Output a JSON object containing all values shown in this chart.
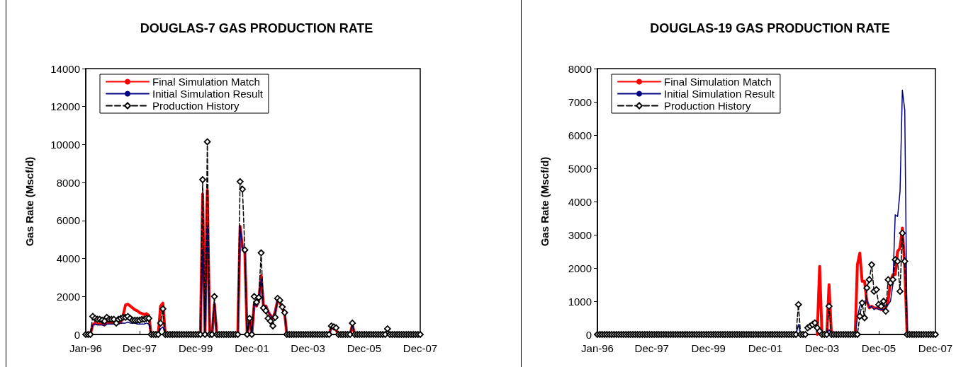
{
  "chart_data": [
    {
      "type": "line",
      "title": "DOUGLAS-7 GAS PRODUCTION RATE",
      "ylabel": "Gas Rate (Mscf/d)",
      "legend": "top left",
      "grid": false,
      "xlim": [
        "1996-01",
        "2007-12"
      ],
      "xticks": [
        {
          "value": "1996-01",
          "label": "Jan-96"
        },
        {
          "value": "1997-12",
          "label": "Dec-97"
        },
        {
          "value": "1999-12",
          "label": "Dec-99"
        },
        {
          "value": "2001-12",
          "label": "Dec-01"
        },
        {
          "value": "2003-12",
          "label": "Dec-03"
        },
        {
          "value": "2005-12",
          "label": "Dec-05"
        },
        {
          "value": "2007-12",
          "label": "Dec-07"
        }
      ],
      "ylim": [
        0,
        14000
      ],
      "yticks": [
        0,
        2000,
        4000,
        6000,
        8000,
        10000,
        12000,
        14000
      ],
      "x": [
        "1996-01",
        "1996-02",
        "1996-03",
        "1996-04",
        "1996-05",
        "1996-06",
        "1996-07",
        "1996-08",
        "1996-09",
        "1996-10",
        "1996-11",
        "1996-12",
        "1997-01",
        "1997-02",
        "1997-03",
        "1997-04",
        "1997-05",
        "1997-06",
        "1997-07",
        "1997-08",
        "1997-09",
        "1997-10",
        "1997-11",
        "1997-12",
        "1998-01",
        "1998-02",
        "1998-03",
        "1998-04",
        "1998-05",
        "1998-06",
        "1998-07",
        "1998-08",
        "1998-09",
        "1998-10",
        "1998-11",
        "1998-12",
        "1999-01",
        "1999-02",
        "1999-03",
        "1999-04",
        "1999-05",
        "1999-06",
        "1999-07",
        "1999-08",
        "1999-09",
        "1999-10",
        "1999-11",
        "1999-12",
        "2000-01",
        "2000-02",
        "2000-03",
        "2000-04",
        "2000-05",
        "2000-06",
        "2000-07",
        "2000-08",
        "2000-09",
        "2000-10",
        "2000-11",
        "2000-12",
        "2001-01",
        "2001-02",
        "2001-03",
        "2001-04",
        "2001-05",
        "2001-06",
        "2001-07",
        "2001-08",
        "2001-09",
        "2001-10",
        "2001-11",
        "2001-12",
        "2002-01",
        "2002-02",
        "2002-03",
        "2002-04",
        "2002-05",
        "2002-06",
        "2002-07",
        "2002-08",
        "2002-09",
        "2002-10",
        "2002-11",
        "2002-12",
        "2003-01",
        "2003-02",
        "2003-03",
        "2003-04",
        "2003-05",
        "2003-06",
        "2003-07",
        "2003-08",
        "2003-09",
        "2003-10",
        "2003-11",
        "2003-12",
        "2004-01",
        "2004-02",
        "2004-03",
        "2004-04",
        "2004-05",
        "2004-06",
        "2004-07",
        "2004-08",
        "2004-09",
        "2004-10",
        "2004-11",
        "2004-12",
        "2005-01",
        "2005-02",
        "2005-03",
        "2005-04",
        "2005-05",
        "2005-06",
        "2005-07",
        "2005-08",
        "2005-09",
        "2005-10",
        "2005-11",
        "2005-12",
        "2006-01",
        "2006-02",
        "2006-03",
        "2006-04",
        "2006-05",
        "2006-06",
        "2006-07",
        "2006-08",
        "2006-09",
        "2006-10",
        "2006-11",
        "2006-12",
        "2007-01",
        "2007-02",
        "2007-03",
        "2007-04",
        "2007-05",
        "2007-06",
        "2007-07",
        "2007-08",
        "2007-09",
        "2007-10",
        "2007-11",
        "2007-12"
      ],
      "series": [
        {
          "name": "Final Simulation Match",
          "color": "#ff0000",
          "marker": "none",
          "line_style": "solid",
          "values": [
            null,
            null,
            0,
            500,
            600,
            550,
            550,
            550,
            500,
            600,
            600,
            600,
            600,
            550,
            600,
            650,
            1000,
            1550,
            1600,
            1500,
            1400,
            1300,
            1250,
            1150,
            1100,
            1050,
            1100,
            1000,
            0,
            null,
            null,
            0,
            1500,
            1650,
            0,
            null,
            null,
            null,
            null,
            null,
            null,
            null,
            null,
            null,
            null,
            null,
            null,
            null,
            null,
            0,
            7400,
            0,
            7600,
            0,
            0,
            1600,
            0,
            null,
            null,
            null,
            null,
            null,
            null,
            null,
            null,
            0,
            5700,
            4600,
            4300,
            0,
            800,
            0,
            1600,
            1500,
            1800,
            3100,
            1500,
            1500,
            1200,
            1000,
            850,
            1200,
            1800,
            1700,
            1400,
            1100,
            0,
            null,
            null,
            null,
            null,
            null,
            null,
            null,
            null,
            null,
            null,
            null,
            null,
            null,
            null,
            null,
            null,
            null,
            0,
            400,
            300,
            250,
            0,
            null,
            null,
            null,
            null,
            0,
            500,
            0,
            null,
            null,
            null,
            null,
            null,
            null,
            null,
            null,
            null,
            null,
            null,
            null,
            null,
            null,
            null,
            null,
            null,
            null,
            null,
            null,
            null,
            null,
            null,
            null,
            null,
            null,
            null,
            null
          ]
        },
        {
          "name": "Initial Simulation Result",
          "color": "#000080",
          "marker": "none",
          "line_style": "solid",
          "values": [
            null,
            null,
            0,
            500,
            550,
            500,
            500,
            500,
            450,
            550,
            550,
            550,
            550,
            500,
            550,
            600,
            600,
            600,
            650,
            600,
            600,
            600,
            550,
            550,
            550,
            550,
            600,
            550,
            0,
            null,
            null,
            0,
            300,
            400,
            0,
            null,
            null,
            null,
            null,
            null,
            null,
            null,
            null,
            null,
            null,
            null,
            null,
            null,
            null,
            0,
            4500,
            0,
            5700,
            0,
            0,
            1700,
            0,
            null,
            null,
            null,
            null,
            null,
            null,
            null,
            null,
            0,
            5700,
            4600,
            4300,
            0,
            800,
            0,
            1600,
            1500,
            1800,
            2900,
            1500,
            1500,
            1200,
            1000,
            850,
            1200,
            1800,
            1700,
            1400,
            1100,
            0,
            null,
            null,
            null,
            null,
            null,
            null,
            null,
            null,
            null,
            null,
            null,
            null,
            null,
            null,
            null,
            null,
            null,
            0,
            400,
            300,
            250,
            0,
            null,
            null,
            null,
            null,
            0,
            500,
            0,
            null,
            null,
            null,
            null,
            null,
            null,
            null,
            null,
            null,
            null,
            null,
            null,
            null,
            null,
            null,
            null,
            null,
            null,
            null,
            null,
            null,
            null,
            null,
            null,
            null,
            null,
            null,
            null
          ]
        },
        {
          "name": "Production History",
          "color": "#000000",
          "marker": "diamond",
          "line_style": "dashed",
          "values": [
            0,
            0,
            0,
            950,
            850,
            800,
            800,
            750,
            700,
            900,
            800,
            800,
            800,
            600,
            800,
            850,
            900,
            900,
            950,
            850,
            750,
            750,
            750,
            750,
            800,
            800,
            850,
            850,
            0,
            0,
            0,
            0,
            600,
            1350,
            0,
            0,
            0,
            0,
            0,
            0,
            0,
            0,
            0,
            0,
            0,
            0,
            0,
            0,
            0,
            0,
            8150,
            0,
            10150,
            0,
            0,
            2000,
            0,
            0,
            0,
            0,
            0,
            0,
            0,
            0,
            0,
            0,
            8050,
            7650,
            4450,
            0,
            850,
            0,
            2000,
            1700,
            1950,
            4300,
            1400,
            1250,
            850,
            700,
            450,
            900,
            1900,
            1800,
            1450,
            1150,
            0,
            0,
            0,
            0,
            0,
            0,
            0,
            0,
            0,
            0,
            0,
            0,
            0,
            0,
            0,
            0,
            0,
            0,
            0,
            450,
            400,
            350,
            0,
            0,
            0,
            0,
            0,
            0,
            600,
            0,
            0,
            0,
            0,
            0,
            0,
            0,
            0,
            0,
            0,
            0,
            0,
            0,
            0,
            300,
            0,
            0,
            0,
            0,
            0,
            0,
            0,
            0,
            0,
            0,
            0,
            0,
            0,
            0
          ]
        }
      ]
    },
    {
      "type": "line",
      "title": "DOUGLAS-19 GAS PRODUCTION RATE",
      "ylabel": "Gas Rate (Mscf/d)",
      "legend": "top left",
      "grid": false,
      "xlim": [
        "1996-01",
        "2007-12"
      ],
      "xticks": [
        {
          "value": "1996-01",
          "label": "Jan-96"
        },
        {
          "value": "1997-12",
          "label": "Dec-97"
        },
        {
          "value": "1999-12",
          "label": "Dec-99"
        },
        {
          "value": "2001-12",
          "label": "Dec-01"
        },
        {
          "value": "2003-12",
          "label": "Dec-03"
        },
        {
          "value": "2005-12",
          "label": "Dec-05"
        },
        {
          "value": "2007-12",
          "label": "Dec-07"
        }
      ],
      "ylim": [
        0,
        8000
      ],
      "yticks": [
        0,
        1000,
        2000,
        3000,
        4000,
        5000,
        6000,
        7000,
        8000
      ],
      "x": [
        "1996-01",
        "1996-02",
        "1996-03",
        "1996-04",
        "1996-05",
        "1996-06",
        "1996-07",
        "1996-08",
        "1996-09",
        "1996-10",
        "1996-11",
        "1996-12",
        "1997-01",
        "1997-02",
        "1997-03",
        "1997-04",
        "1997-05",
        "1997-06",
        "1997-07",
        "1997-08",
        "1997-09",
        "1997-10",
        "1997-11",
        "1997-12",
        "1998-01",
        "1998-02",
        "1998-03",
        "1998-04",
        "1998-05",
        "1998-06",
        "1998-07",
        "1998-08",
        "1998-09",
        "1998-10",
        "1998-11",
        "1998-12",
        "1999-01",
        "1999-02",
        "1999-03",
        "1999-04",
        "1999-05",
        "1999-06",
        "1999-07",
        "1999-08",
        "1999-09",
        "1999-10",
        "1999-11",
        "1999-12",
        "2000-01",
        "2000-02",
        "2000-03",
        "2000-04",
        "2000-05",
        "2000-06",
        "2000-07",
        "2000-08",
        "2000-09",
        "2000-10",
        "2000-11",
        "2000-12",
        "2001-01",
        "2001-02",
        "2001-03",
        "2001-04",
        "2001-05",
        "2001-06",
        "2001-07",
        "2001-08",
        "2001-09",
        "2001-10",
        "2001-11",
        "2001-12",
        "2002-01",
        "2002-02",
        "2002-03",
        "2002-04",
        "2002-05",
        "2002-06",
        "2002-07",
        "2002-08",
        "2002-09",
        "2002-10",
        "2002-11",
        "2002-12",
        "2003-01",
        "2003-02",
        "2003-03",
        "2003-04",
        "2003-05",
        "2003-06",
        "2003-07",
        "2003-08",
        "2003-09",
        "2003-10",
        "2003-11",
        "2003-12",
        "2004-01",
        "2004-02",
        "2004-03",
        "2004-04",
        "2004-05",
        "2004-06",
        "2004-07",
        "2004-08",
        "2004-09",
        "2004-10",
        "2004-11",
        "2004-12",
        "2005-01",
        "2005-02",
        "2005-03",
        "2005-04",
        "2005-05",
        "2005-06",
        "2005-07",
        "2005-08",
        "2005-09",
        "2005-10",
        "2005-11",
        "2005-12",
        "2006-01",
        "2006-02",
        "2006-03",
        "2006-04",
        "2006-05",
        "2006-06",
        "2006-07",
        "2006-08",
        "2006-09",
        "2006-10",
        "2006-11",
        "2006-12",
        "2007-01",
        "2007-02",
        "2007-03",
        "2007-04",
        "2007-05",
        "2007-06",
        "2007-07",
        "2007-08",
        "2007-09",
        "2007-10",
        "2007-11",
        "2007-12"
      ],
      "series": [
        {
          "name": "Final Simulation Match",
          "color": "#ff0000",
          "marker": "none",
          "line_style": "solid",
          "values": [
            null,
            null,
            null,
            null,
            null,
            null,
            null,
            null,
            null,
            null,
            null,
            null,
            null,
            null,
            null,
            null,
            null,
            null,
            null,
            null,
            null,
            null,
            null,
            null,
            null,
            null,
            null,
            null,
            null,
            null,
            null,
            null,
            null,
            null,
            null,
            null,
            null,
            null,
            null,
            null,
            null,
            null,
            null,
            null,
            null,
            null,
            null,
            null,
            null,
            null,
            null,
            null,
            null,
            null,
            null,
            null,
            null,
            null,
            null,
            null,
            null,
            null,
            null,
            null,
            null,
            null,
            null,
            null,
            null,
            null,
            null,
            null,
            null,
            null,
            null,
            null,
            null,
            null,
            null,
            null,
            null,
            null,
            null,
            null,
            null,
            null,
            null,
            null,
            null,
            null,
            null,
            null,
            null,
            0,
            2050,
            0,
            null,
            0,
            1500,
            0,
            null,
            null,
            null,
            null,
            null,
            null,
            null,
            null,
            null,
            0,
            2100,
            2450,
            1600,
            1600,
            1000,
            800,
            850,
            800,
            800,
            800,
            750,
            750,
            800,
            1000,
            1600,
            1800,
            1800,
            2500,
            2600,
            3200,
            2000,
            0,
            null,
            null,
            null,
            null,
            null,
            null,
            null,
            null,
            null,
            null,
            null,
            null
          ]
        },
        {
          "name": "Initial Simulation Result",
          "color": "#000080",
          "marker": "none",
          "line_style": "solid",
          "values": [
            null,
            null,
            null,
            null,
            null,
            null,
            null,
            null,
            null,
            null,
            null,
            null,
            null,
            null,
            null,
            null,
            null,
            null,
            null,
            null,
            null,
            null,
            null,
            null,
            null,
            null,
            null,
            null,
            null,
            null,
            null,
            null,
            null,
            null,
            null,
            null,
            null,
            null,
            null,
            null,
            null,
            null,
            null,
            null,
            null,
            null,
            null,
            null,
            null,
            null,
            null,
            null,
            null,
            null,
            null,
            null,
            null,
            null,
            null,
            null,
            null,
            null,
            null,
            null,
            null,
            null,
            null,
            null,
            null,
            null,
            null,
            null,
            null,
            null,
            null,
            null,
            null,
            null,
            null,
            null,
            null,
            null,
            null,
            null,
            0,
            300,
            0,
            null,
            null,
            null,
            null,
            null,
            null,
            null,
            null,
            null,
            null,
            0,
            150,
            0,
            null,
            null,
            null,
            null,
            null,
            null,
            null,
            null,
            null,
            0,
            500,
            850,
            950,
            1000,
            1050,
            800,
            850,
            750,
            800,
            750,
            750,
            750,
            800,
            900,
            1000,
            1500,
            3600,
            3550,
            4300,
            7350,
            6750,
            0,
            null,
            null,
            null,
            null,
            null,
            null,
            null,
            null,
            null,
            null,
            null,
            null
          ]
        },
        {
          "name": "Production History",
          "color": "#000000",
          "marker": "diamond",
          "line_style": "dashed",
          "values": [
            0,
            0,
            0,
            0,
            0,
            0,
            0,
            0,
            0,
            0,
            0,
            0,
            0,
            0,
            0,
            0,
            0,
            0,
            0,
            0,
            0,
            0,
            0,
            0,
            0,
            0,
            0,
            0,
            0,
            0,
            0,
            0,
            0,
            0,
            0,
            0,
            0,
            0,
            0,
            0,
            0,
            0,
            0,
            0,
            0,
            0,
            0,
            0,
            0,
            0,
            0,
            0,
            0,
            0,
            0,
            0,
            0,
            0,
            0,
            0,
            0,
            0,
            0,
            0,
            0,
            0,
            0,
            0,
            0,
            0,
            0,
            0,
            0,
            0,
            0,
            0,
            0,
            0,
            0,
            0,
            0,
            0,
            0,
            0,
            0,
            900,
            0,
            0,
            0,
            200,
            250,
            300,
            350,
            200,
            100,
            0,
            0,
            0,
            850,
            0,
            0,
            0,
            0,
            0,
            0,
            0,
            0,
            0,
            0,
            0,
            0,
            550,
            950,
            500,
            1400,
            1650,
            2100,
            1300,
            1350,
            900,
            850,
            1000,
            700,
            1650,
            1550,
            1650,
            2250,
            2200,
            1300,
            3050,
            2200,
            0,
            0,
            0,
            0,
            0,
            0,
            0,
            0,
            0,
            0,
            0,
            0,
            0
          ]
        }
      ]
    }
  ]
}
